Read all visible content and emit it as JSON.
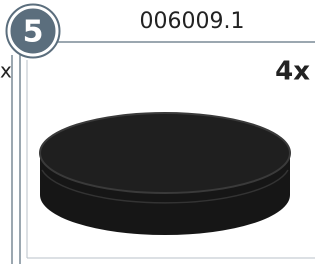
{
  "step": "5",
  "part_number": "006009.1",
  "quantity": "4x",
  "left_fragment": "x"
}
